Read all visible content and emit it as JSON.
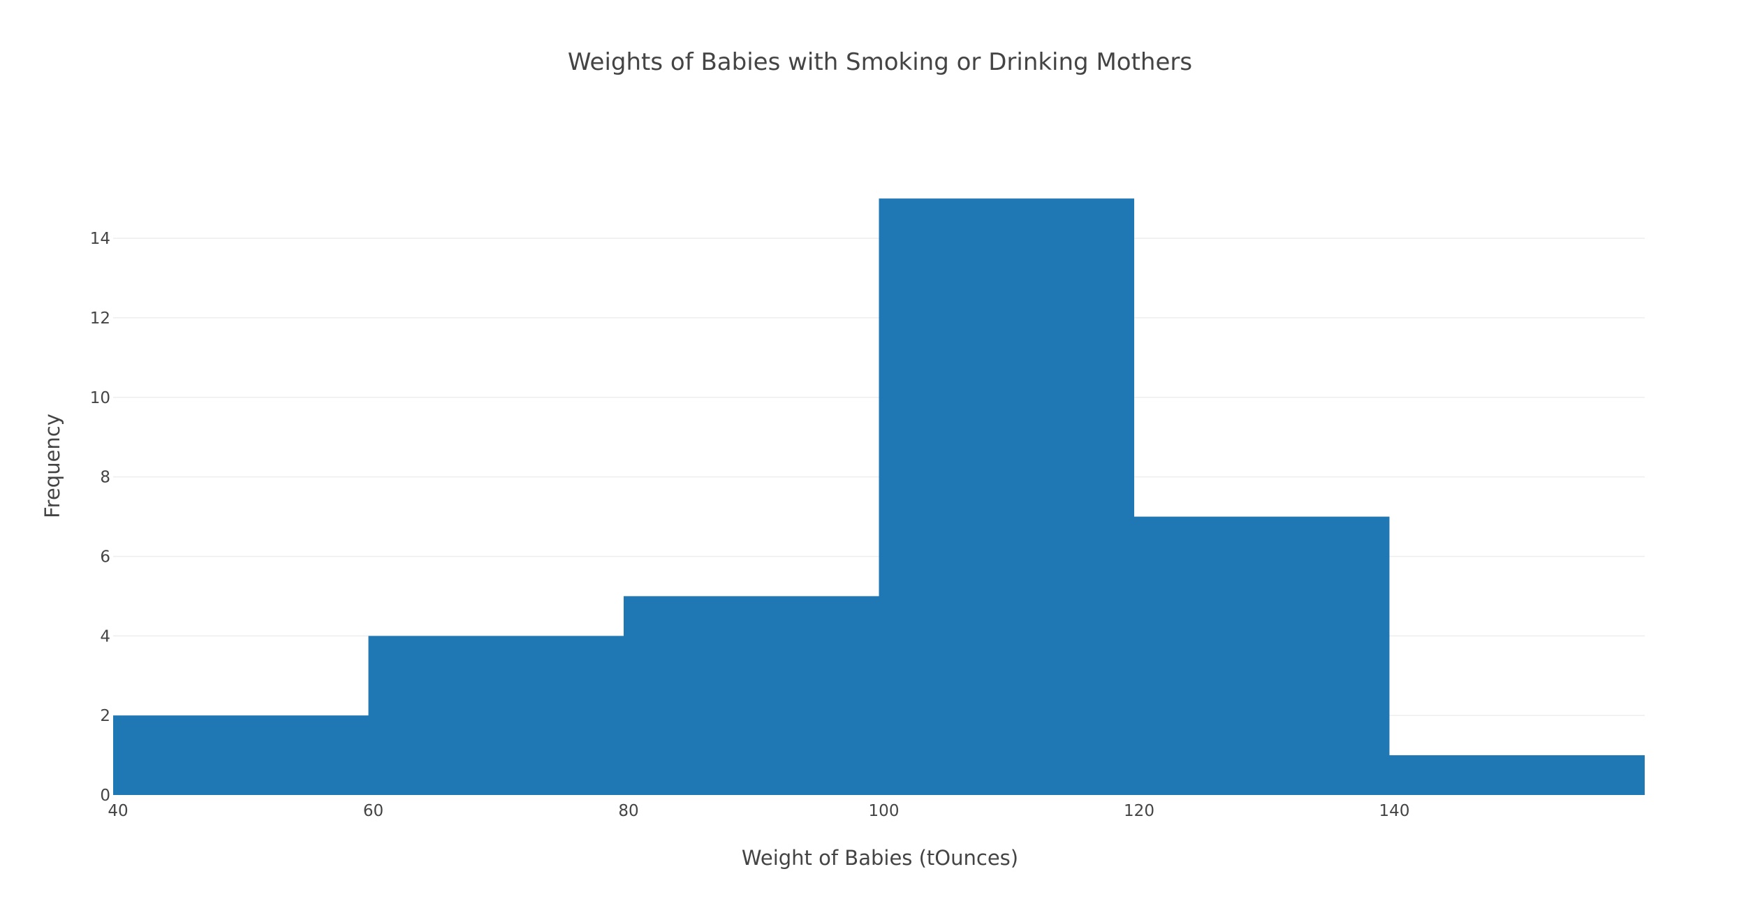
{
  "chart_data": {
    "type": "bar",
    "title": "Weights of Babies with Smoking or Drinking Mothers",
    "xlabel": "Weight of Babies (tOunces)",
    "ylabel": "Frequency",
    "bin_edges": [
      40,
      60,
      80,
      100,
      120,
      140,
      160
    ],
    "values": [
      2,
      4,
      5,
      15,
      7,
      1
    ],
    "xlim": [
      40,
      160
    ],
    "ylim": [
      0,
      15.6
    ],
    "x_ticks": [
      40,
      60,
      80,
      100,
      120,
      140
    ],
    "y_ticks": [
      0,
      2,
      4,
      6,
      8,
      10,
      12,
      14
    ],
    "grid": true,
    "bar_color": "#1f77b4"
  }
}
